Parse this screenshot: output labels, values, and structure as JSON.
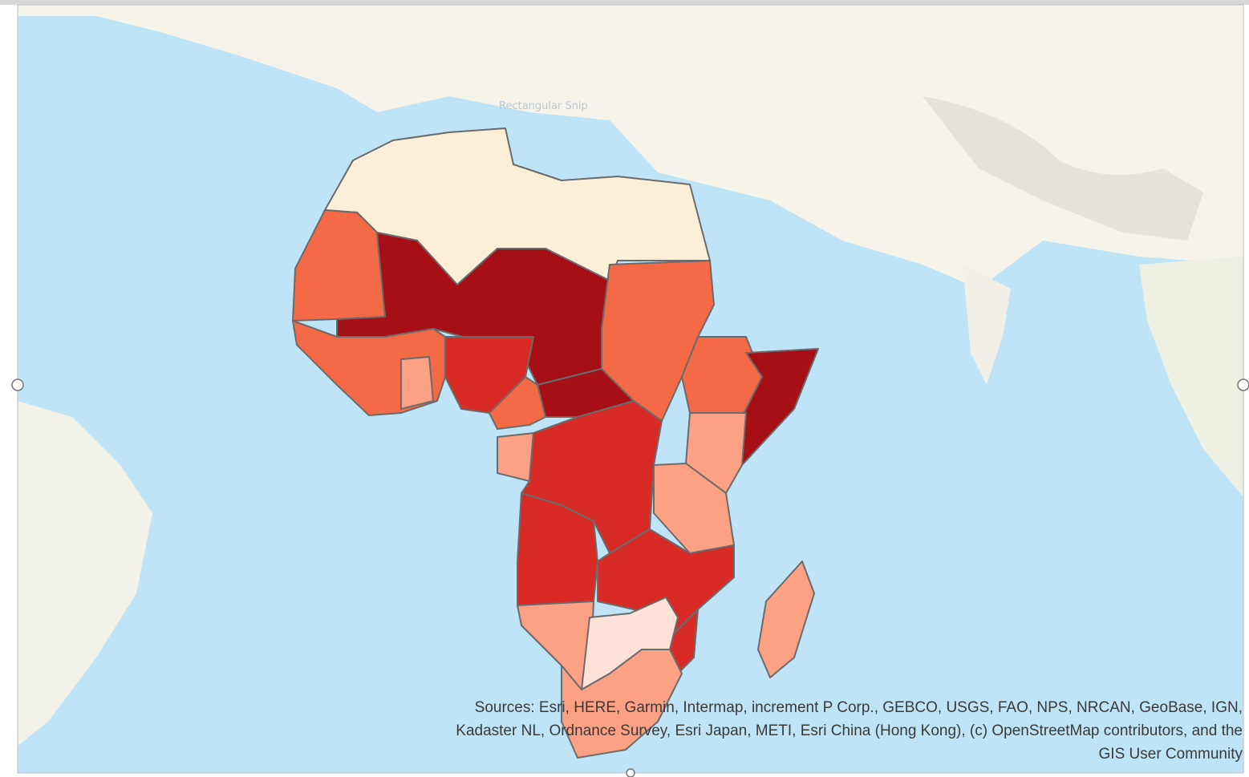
{
  "watermark": "Rectangular Snip",
  "attribution": {
    "lines": [
      "Sources: Esri, HERE, Garmin, Intermap, increment P Corp., GEBCO, USGS, FAO, NPS, NRCAN, GeoBase, IGN,",
      "Kadaster NL, Ordnance Survey, Esri Japan, METI, Esri China (Hong Kong), (c) OpenStreetMap contributors, and the",
      "GIS User Community"
    ]
  }
}
